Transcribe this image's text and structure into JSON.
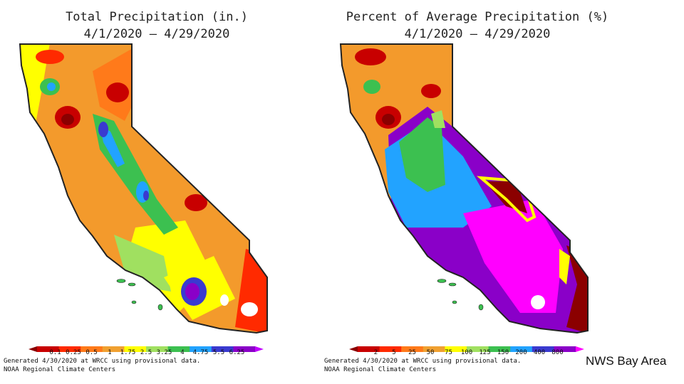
{
  "left": {
    "title1": "Total Precipitation (in.)",
    "title2": "4/1/2020 – 4/29/2020",
    "legend": [
      "0.1",
      "0.25",
      "0.5",
      "1",
      "1.75",
      "2.5",
      "3.25",
      "4",
      "4.75",
      "5.5",
      "6.25"
    ],
    "colors": [
      "#8b0000",
      "#c80000",
      "#ff2a00",
      "#ff7a1a",
      "#f0a030",
      "#ffff00",
      "#a0e060",
      "#3cc050",
      "#22a3ff",
      "#3a3ad0",
      "#8a00c8",
      "#c000ff"
    ],
    "credit1": "Generated 4/30/2020 at WRCC using provisional data.",
    "credit2": "NOAA Regional Climate Centers"
  },
  "right": {
    "title1": "Percent of Average Precipitation (%)",
    "title2": "4/1/2020 – 4/29/2020",
    "legend": [
      "2",
      "5",
      "25",
      "50",
      "75",
      "100",
      "125",
      "150",
      "200",
      "400",
      "800"
    ],
    "colors": [
      "#8b0000",
      "#c80000",
      "#ff2a00",
      "#ff7a1a",
      "#f0a030",
      "#ffff00",
      "#a0e060",
      "#3cc050",
      "#22a3ff",
      "#3a3ad0",
      "#8a00c8",
      "#ff00ff"
    ],
    "credit1": "Generated 4/30/2020 at WRCC using provisional data.",
    "credit2": "NOAA Regional Climate Centers"
  },
  "brand": "NWS Bay Area"
}
